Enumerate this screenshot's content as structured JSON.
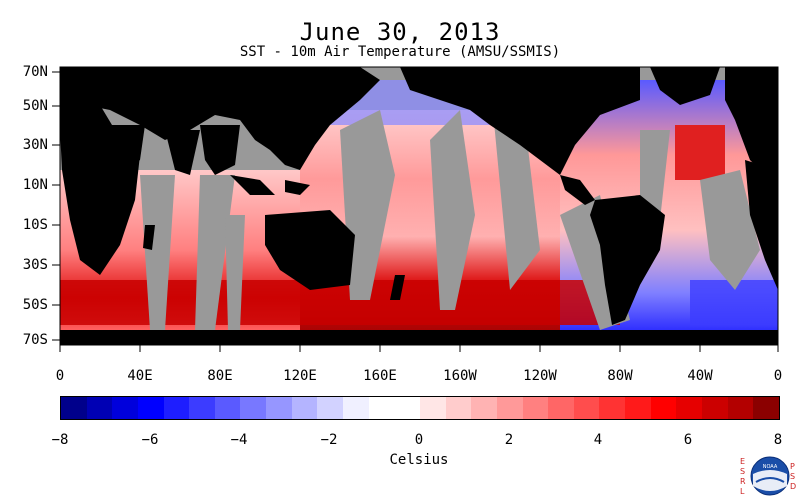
{
  "header": {
    "date_title": "June 30, 2013",
    "subtitle": "SST - 10m Air Temperature (AMSU/SSMIS)"
  },
  "map": {
    "lat_labels": [
      "70N",
      "50N",
      "30N",
      "10N",
      "10S",
      "30S",
      "50S",
      "70S"
    ],
    "lon_labels": [
      "0",
      "40E",
      "80E",
      "120E",
      "160E",
      "160W",
      "120W",
      "80W",
      "40W",
      "0"
    ],
    "colors": {
      "land": "#000000",
      "no_data": "#999999"
    }
  },
  "colorbar": {
    "tick_labels": [
      "−8",
      "−6",
      "−4",
      "−2",
      "0",
      "2",
      "4",
      "6",
      "8"
    ],
    "units_label": "Celsius",
    "range": [
      -8,
      8
    ],
    "colors": [
      "#00008b",
      "#0000b4",
      "#0000dc",
      "#0000ff",
      "#1e1eff",
      "#3c3cff",
      "#5a5aff",
      "#7878ff",
      "#9696ff",
      "#b4b4ff",
      "#d2d2ff",
      "#f0f0ff",
      "#ffffff",
      "#ffffff",
      "#ffe6e6",
      "#ffcccc",
      "#ffb3b3",
      "#ff9999",
      "#ff8080",
      "#ff6666",
      "#ff4d4d",
      "#ff3333",
      "#ff1a1a",
      "#ff0000",
      "#e60000",
      "#cc0000",
      "#b30000",
      "#8b0000"
    ]
  },
  "logo": {
    "left_letters": "ESRL",
    "right_letters": "PSD",
    "emblem_text": "NOAA"
  }
}
